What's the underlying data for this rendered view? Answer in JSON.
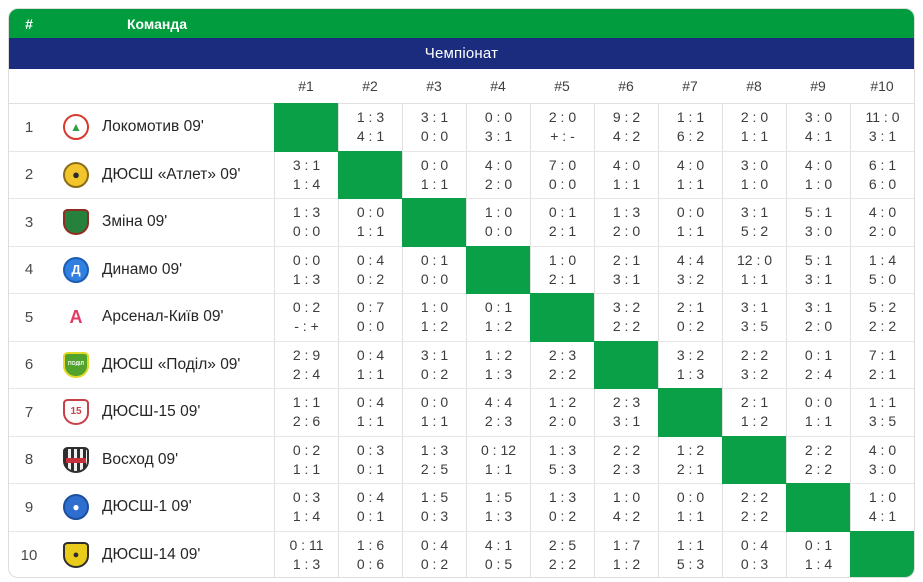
{
  "header": {
    "rank_label": "#",
    "team_label": "Команда",
    "championship_label": "Чемпіонат"
  },
  "columns": [
    "#1",
    "#2",
    "#3",
    "#4",
    "#5",
    "#6",
    "#7",
    "#8",
    "#9",
    "#10"
  ],
  "colors": {
    "green": "#009c3e",
    "diagonal": "#0aa047",
    "navy": "#1b2c7e",
    "border": "#e0e0e0",
    "score_text": "#3c3c3c"
  },
  "teams": [
    {
      "rank": "1",
      "name": "Локомотив 09'",
      "logo": {
        "kind": "circle",
        "bg": "#ffffff",
        "border": "#d63a2f",
        "glyph": "▲",
        "glyph_color": "#2f9e45",
        "glyph_size": "12px"
      },
      "scores": [
        null,
        [
          "1 : 3",
          "4 : 1"
        ],
        [
          "3 : 1",
          "0 : 0"
        ],
        [
          "0 : 0",
          "3 : 1"
        ],
        [
          "2 : 0",
          "+ : -"
        ],
        [
          "9 : 2",
          "4 : 2"
        ],
        [
          "1 : 1",
          "6 : 2"
        ],
        [
          "2 : 0",
          "1 : 1"
        ],
        [
          "3 : 0",
          "4 : 1"
        ],
        [
          "11 : 0",
          "3 : 1"
        ]
      ]
    },
    {
      "rank": "2",
      "name": "ДЮСШ «Атлет» 09'",
      "logo": {
        "kind": "circle",
        "bg": "#f3c52d",
        "border": "#8a6d1a",
        "glyph": "●",
        "glyph_color": "#2b2b2b",
        "glyph_size": "13px"
      },
      "scores": [
        [
          "3 : 1",
          "1 : 4"
        ],
        null,
        [
          "0 : 0",
          "1 : 1"
        ],
        [
          "4 : 0",
          "2 : 0"
        ],
        [
          "7 : 0",
          "0 : 0"
        ],
        [
          "4 : 0",
          "1 : 1"
        ],
        [
          "4 : 0",
          "1 : 1"
        ],
        [
          "3 : 0",
          "1 : 0"
        ],
        [
          "4 : 0",
          "1 : 0"
        ],
        [
          "6 : 1",
          "6 : 0"
        ]
      ]
    },
    {
      "rank": "3",
      "name": "Зміна 09'",
      "logo": {
        "kind": "shield",
        "bg": "#26813d",
        "border": "#8f2d23",
        "glyph": "",
        "glyph_color": "#ffffff",
        "glyph_size": "9px"
      },
      "scores": [
        [
          "1 : 3",
          "0 : 0"
        ],
        [
          "0 : 0",
          "1 : 1"
        ],
        null,
        [
          "1 : 0",
          "0 : 0"
        ],
        [
          "0 : 1",
          "2 : 1"
        ],
        [
          "1 : 3",
          "2 : 0"
        ],
        [
          "0 : 0",
          "1 : 1"
        ],
        [
          "3 : 1",
          "5 : 2"
        ],
        [
          "5 : 1",
          "3 : 0"
        ],
        [
          "4 : 0",
          "2 : 0"
        ]
      ]
    },
    {
      "rank": "4",
      "name": "Динамо 09'",
      "logo": {
        "kind": "circle",
        "bg": "#2f80e0",
        "border": "#1d5cb4",
        "glyph": "Д",
        "glyph_color": "#ffffff",
        "glyph_size": "13px"
      },
      "scores": [
        [
          "0 : 0",
          "1 : 3"
        ],
        [
          "0 : 4",
          "0 : 2"
        ],
        [
          "0 : 1",
          "0 : 0"
        ],
        null,
        [
          "1 : 0",
          "2 : 1"
        ],
        [
          "2 : 1",
          "3 : 1"
        ],
        [
          "4 : 4",
          "3 : 2"
        ],
        [
          "12 : 0",
          "1 : 1"
        ],
        [
          "5 : 1",
          "3 : 1"
        ],
        [
          "1 : 4",
          "5 : 0"
        ]
      ]
    },
    {
      "rank": "5",
      "name": "Арсенал-Київ 09'",
      "logo": {
        "kind": "plain",
        "bg": "",
        "border": "",
        "glyph": "А",
        "glyph_color": "#e23a62",
        "glyph_size": "18px"
      },
      "scores": [
        [
          "0 : 2",
          "- : +"
        ],
        [
          "0 : 7",
          "0 : 0"
        ],
        [
          "1 : 0",
          "1 : 2"
        ],
        [
          "0 : 1",
          "1 : 2"
        ],
        null,
        [
          "3 : 2",
          "2 : 2"
        ],
        [
          "2 : 1",
          "0 : 2"
        ],
        [
          "3 : 1",
          "3 : 5"
        ],
        [
          "3 : 1",
          "2 : 0"
        ],
        [
          "5 : 2",
          "2 : 2"
        ]
      ]
    },
    {
      "rank": "6",
      "name": "ДЮСШ «Поділ» 09'",
      "logo": {
        "kind": "shield",
        "bg": "#51a32b",
        "border": "#e4d929",
        "glyph": "ПОДІЛ",
        "glyph_color": "#ffffff",
        "glyph_size": "5px"
      },
      "scores": [
        [
          "2 : 9",
          "2 : 4"
        ],
        [
          "0 : 4",
          "1 : 1"
        ],
        [
          "3 : 1",
          "0 : 2"
        ],
        [
          "1 : 2",
          "1 : 3"
        ],
        [
          "2 : 3",
          "2 : 2"
        ],
        null,
        [
          "3 : 2",
          "1 : 3"
        ],
        [
          "2 : 2",
          "3 : 2"
        ],
        [
          "0 : 1",
          "2 : 4"
        ],
        [
          "7 : 1",
          "2 : 1"
        ]
      ]
    },
    {
      "rank": "7",
      "name": "ДЮСШ-15 09'",
      "logo": {
        "kind": "shield",
        "bg": "#fdfdfd",
        "border": "#c84048",
        "glyph": "15",
        "glyph_color": "#c84048",
        "glyph_size": "10px"
      },
      "scores": [
        [
          "1 : 1",
          "2 : 6"
        ],
        [
          "0 : 4",
          "1 : 1"
        ],
        [
          "0 : 0",
          "1 : 1"
        ],
        [
          "4 : 4",
          "2 : 3"
        ],
        [
          "1 : 2",
          "2 : 0"
        ],
        [
          "2 : 3",
          "3 : 1"
        ],
        null,
        [
          "2 : 1",
          "1 : 2"
        ],
        [
          "0 : 0",
          "1 : 1"
        ],
        [
          "1 : 1",
          "3 : 5"
        ]
      ]
    },
    {
      "rank": "8",
      "name": "Восход 09'",
      "logo": {
        "kind": "striped",
        "bg": "",
        "border": "#2e2e2e",
        "glyph": "",
        "glyph_color": "#ffffff",
        "glyph_size": "9px"
      },
      "scores": [
        [
          "0 : 2",
          "1 : 1"
        ],
        [
          "0 : 3",
          "0 : 1"
        ],
        [
          "1 : 3",
          "2 : 5"
        ],
        [
          "0 : 12",
          "1 : 1"
        ],
        [
          "1 : 3",
          "5 : 3"
        ],
        [
          "2 : 2",
          "2 : 3"
        ],
        [
          "1 : 2",
          "2 : 1"
        ],
        null,
        [
          "2 : 2",
          "2 : 2"
        ],
        [
          "4 : 0",
          "3 : 0"
        ]
      ]
    },
    {
      "rank": "9",
      "name": "ДЮСШ-1 09'",
      "logo": {
        "kind": "circle",
        "bg": "#2d6ecf",
        "border": "#1c4f9e",
        "glyph": "●",
        "glyph_color": "#ffffff",
        "glyph_size": "12px"
      },
      "scores": [
        [
          "0 : 3",
          "1 : 4"
        ],
        [
          "0 : 4",
          "0 : 1"
        ],
        [
          "1 : 5",
          "0 : 3"
        ],
        [
          "1 : 5",
          "1 : 3"
        ],
        [
          "1 : 3",
          "0 : 2"
        ],
        [
          "1 : 0",
          "4 : 2"
        ],
        [
          "0 : 0",
          "1 : 1"
        ],
        [
          "2 : 2",
          "2 : 2"
        ],
        null,
        [
          "1 : 0",
          "4 : 1"
        ]
      ]
    },
    {
      "rank": "10",
      "name": "ДЮСШ-14 09'",
      "logo": {
        "kind": "shield",
        "bg": "#e9cb1c",
        "border": "#2f2f2f",
        "glyph": "●",
        "glyph_color": "#2b2b2b",
        "glyph_size": "11px"
      },
      "scores": [
        [
          "0 : 11",
          "1 : 3"
        ],
        [
          "1 : 6",
          "0 : 6"
        ],
        [
          "0 : 4",
          "0 : 2"
        ],
        [
          "4 : 1",
          "0 : 5"
        ],
        [
          "2 : 5",
          "2 : 2"
        ],
        [
          "1 : 7",
          "1 : 2"
        ],
        [
          "1 : 1",
          "5 : 3"
        ],
        [
          "0 : 4",
          "0 : 3"
        ],
        [
          "0 : 1",
          "1 : 4"
        ],
        null
      ]
    }
  ]
}
